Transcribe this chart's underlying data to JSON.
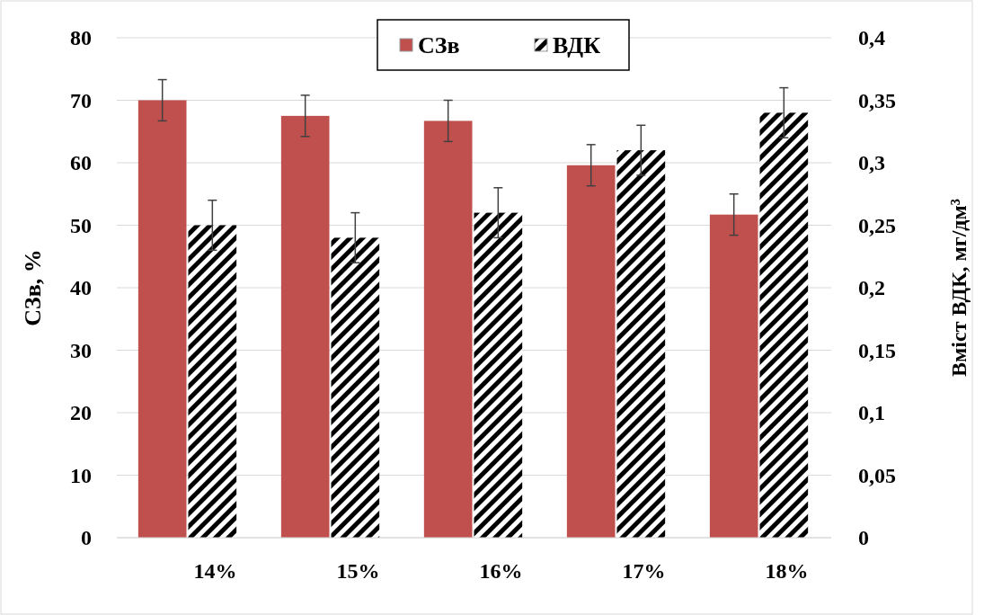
{
  "chart_data": {
    "type": "bar",
    "categories": [
      "14%",
      "15%",
      "16%",
      "17%",
      "18%"
    ],
    "series": [
      {
        "name": "СЗв",
        "color": "#c0504d",
        "values": [
          70,
          67.5,
          66.7,
          59.6,
          51.7
        ],
        "errors": [
          3.3,
          3.3,
          3.3,
          3.3,
          3.3
        ]
      },
      {
        "name": "ВДК",
        "color": "#000000",
        "axis": "y2",
        "values": [
          0.25,
          0.24,
          0.26,
          0.31,
          0.34
        ],
        "errors": [
          0.02,
          0.02,
          0.02,
          0.02,
          0.02
        ]
      }
    ],
    "ylabel": "СЗв, %",
    "y2label": "Вміст ВДК, мг/дм³",
    "ylim": [
      0,
      80
    ],
    "yticks": [
      0,
      10,
      20,
      30,
      40,
      50,
      60,
      70,
      80
    ],
    "y2lim": [
      0,
      0.4
    ],
    "y2ticks": [
      {
        "value": 0,
        "label": "0"
      },
      {
        "value": 0.05,
        "label": "0,05"
      },
      {
        "value": 0.1,
        "label": "0,1"
      },
      {
        "value": 0.15,
        "label": "0,15"
      },
      {
        "value": 0.2,
        "label": "0,2"
      },
      {
        "value": 0.25,
        "label": "0,25"
      },
      {
        "value": 0.3,
        "label": "0,3"
      },
      {
        "value": 0.35,
        "label": "0,35"
      },
      {
        "value": 0.4,
        "label": "0,4"
      }
    ],
    "grid": "y",
    "legend": "top"
  }
}
